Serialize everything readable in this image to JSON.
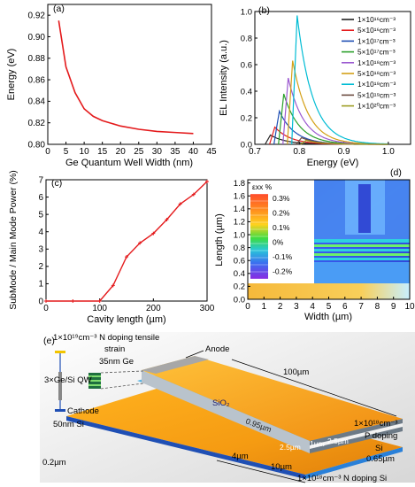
{
  "panels": {
    "a": {
      "label": "(a)",
      "xlabel": "Ge Quantum Well Width (nm)",
      "ylabel": "Energy (eV)",
      "xticks": [
        "0",
        "5",
        "10",
        "15",
        "20",
        "25",
        "30",
        "35",
        "40",
        "45"
      ],
      "yticks": [
        "0.80",
        "0.82",
        "0.84",
        "0.86",
        "0.88",
        "0.90",
        "0.92"
      ]
    },
    "b": {
      "label": "(b)",
      "xlabel": "Energy (eV)",
      "ylabel": "EL Intensity (a.u.)",
      "xticks": [
        "0.7",
        "0.8",
        "0.9",
        "1.0"
      ],
      "yticks": [
        "0.0",
        "0.2",
        "0.4",
        "0.6",
        "0.8",
        "1.0"
      ]
    },
    "c": {
      "label": "(c)",
      "xlabel": "Cavity length (µm)",
      "ylabel": "SubMode / Main Mode Power (%)",
      "xticks": [
        "0",
        "100",
        "200",
        "300"
      ],
      "yticks": [
        "0",
        "1",
        "2",
        "3",
        "4",
        "5",
        "6",
        "7"
      ]
    },
    "d": {
      "label": "(d)",
      "xlabel": "Width (µm)",
      "ylabel": "Length (µm)",
      "xticks": [
        "0",
        "1",
        "2",
        "3",
        "4",
        "5",
        "6",
        "7",
        "8",
        "9",
        "10"
      ],
      "yticks": [
        "0.0",
        "0.2",
        "0.4",
        "0.6",
        "0.8",
        "1.0",
        "1.2",
        "1.4",
        "1.6",
        "1.8"
      ],
      "colorbar_title": "εxx %",
      "colorbar_labels": [
        "0.3%",
        "0.2%",
        "0.1%",
        "0%",
        "-0.1%",
        "-0.2%"
      ]
    },
    "e": {
      "label": "(e)",
      "annotations": {
        "top_doping": "1×10¹⁹cm⁻³ N doping tensile",
        "strain": "strain",
        "ge": "35nm Ge",
        "qw": "3×Ge/Si QW",
        "cathode": "Cathode",
        "si50": "50nm Si",
        "anode": "Anode",
        "len100": "100µm",
        "sio2": "SiO₂",
        "w095": "0.95µm",
        "seg1": "2.5µm",
        "seg2": "1µm",
        "seg3": "2.5µm",
        "p1": "1×10¹⁸cm⁻³",
        "p2": "P  doping",
        "p3": "Si",
        "t065": "0.65µm",
        "t02": "0.2µm",
        "w4": "4µm",
        "w10": "10µm",
        "nbottom": "1×10¹⁸cm⁻³ N doping Si"
      }
    }
  },
  "chart_data": [
    {
      "type": "line",
      "panel": "a",
      "x": [
        3,
        5,
        7.5,
        10,
        12.5,
        15,
        20,
        25,
        30,
        35,
        40
      ],
      "y": [
        0.915,
        0.872,
        0.848,
        0.833,
        0.826,
        0.822,
        0.817,
        0.814,
        0.812,
        0.811,
        0.81
      ],
      "xlim": [
        0,
        45
      ],
      "ylim": [
        0.8,
        0.93
      ],
      "color": "#e41a1c"
    },
    {
      "type": "line",
      "panel": "b",
      "xlim": [
        0.7,
        1.05
      ],
      "ylim": [
        0,
        1.0
      ],
      "series": [
        {
          "name": "1×10¹⁶cm⁻³",
          "color": "#222222",
          "peak_x": 0.735,
          "peak_y": 0.07
        },
        {
          "name": "5×10¹⁶cm⁻³",
          "color": "#e41a1c",
          "peak_x": 0.745,
          "peak_y": 0.13
        },
        {
          "name": "1×10¹⁷cm⁻³",
          "color": "#1f4fb4",
          "peak_x": 0.755,
          "peak_y": 0.25
        },
        {
          "name": "5×10¹⁷cm⁻³",
          "color": "#2ca02c",
          "peak_x": 0.765,
          "peak_y": 0.38
        },
        {
          "name": "1×10¹⁸cm⁻³",
          "color": "#9b59d0",
          "peak_x": 0.775,
          "peak_y": 0.5
        },
        {
          "name": "5×10¹⁸cm⁻³",
          "color": "#d4a017",
          "peak_x": 0.785,
          "peak_y": 0.63
        },
        {
          "name": "1×10¹⁹cm⁻³",
          "color": "#00bcd4",
          "peak_x": 0.795,
          "peak_y": 0.97
        },
        {
          "name": "5×10¹⁹cm⁻³",
          "color": "#6d4c41",
          "peak_x": 0.805,
          "peak_y": 0.05
        },
        {
          "name": "1×10²⁰cm⁻³",
          "color": "#9e9d24",
          "peak_x": 0.815,
          "peak_y": 0.03
        }
      ]
    },
    {
      "type": "line",
      "panel": "c",
      "x": [
        0,
        50,
        100,
        125,
        150,
        175,
        200,
        225,
        250,
        275,
        300
      ],
      "y": [
        0,
        0,
        0,
        0.9,
        2.55,
        3.35,
        3.9,
        4.7,
        5.6,
        6.15,
        6.9
      ],
      "xlim": [
        0,
        300
      ],
      "ylim": [
        0,
        7
      ],
      "color": "#e41a1c"
    },
    {
      "type": "heatmap",
      "panel": "d",
      "xlim": [
        0,
        10
      ],
      "ylim": [
        0,
        1.85
      ]
    }
  ]
}
